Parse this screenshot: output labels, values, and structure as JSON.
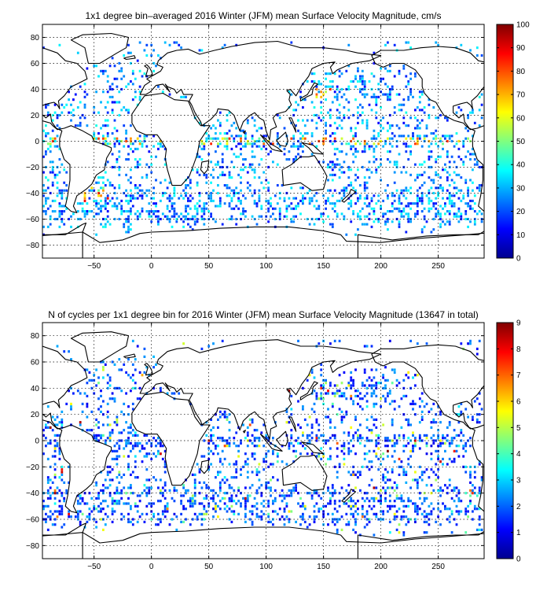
{
  "chart_data": [
    {
      "type": "heatmap",
      "title": "1x1 degree bin–averaged 2016 Winter (JFM) mean Surface Velocity Magnitude, cm/s",
      "xlabel": "",
      "ylabel": "",
      "xlim": [
        -95,
        290
      ],
      "ylim": [
        -90,
        90
      ],
      "x_ticks": [
        -50,
        0,
        50,
        100,
        150,
        200,
        250
      ],
      "y_ticks": [
        80,
        60,
        40,
        20,
        0,
        -20,
        -40,
        -60,
        -80
      ],
      "grid": true,
      "colorbar": {
        "min": 0,
        "max": 100,
        "ticks": [
          0,
          10,
          20,
          30,
          40,
          50,
          60,
          70,
          80,
          90,
          100
        ],
        "colormap": "jet"
      }
    },
    {
      "type": "heatmap",
      "title": "N of cycles per 1x1 degree bin for 2016 Winter (JFM) mean Surface Velocity Magnitude (13647 in total)",
      "xlabel": "",
      "ylabel": "",
      "xlim": [
        -95,
        290
      ],
      "ylim": [
        -90,
        90
      ],
      "x_ticks": [
        -50,
        0,
        50,
        100,
        150,
        200,
        250
      ],
      "y_ticks": [
        80,
        60,
        40,
        20,
        0,
        -20,
        -40,
        -60,
        -80
      ],
      "grid": true,
      "colorbar": {
        "min": 0,
        "max": 9,
        "ticks": [
          0,
          1,
          2,
          3,
          4,
          5,
          6,
          7,
          8,
          9
        ],
        "colormap": "jet"
      }
    }
  ]
}
